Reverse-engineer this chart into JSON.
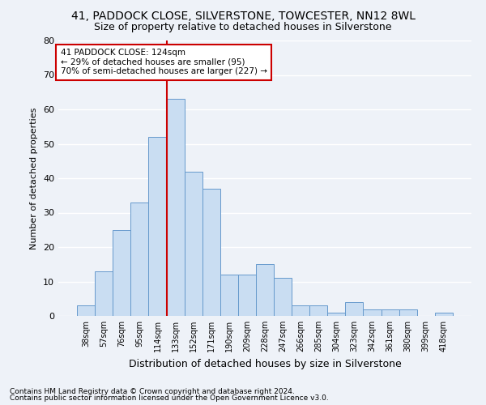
{
  "title1": "41, PADDOCK CLOSE, SILVERSTONE, TOWCESTER, NN12 8WL",
  "title2": "Size of property relative to detached houses in Silverstone",
  "xlabel": "Distribution of detached houses by size in Silverstone",
  "ylabel": "Number of detached properties",
  "categories": [
    "38sqm",
    "57sqm",
    "76sqm",
    "95sqm",
    "114sqm",
    "133sqm",
    "152sqm",
    "171sqm",
    "190sqm",
    "209sqm",
    "228sqm",
    "247sqm",
    "266sqm",
    "285sqm",
    "304sqm",
    "323sqm",
    "342sqm",
    "361sqm",
    "380sqm",
    "399sqm",
    "418sqm"
  ],
  "values": [
    3,
    13,
    25,
    33,
    52,
    63,
    42,
    37,
    12,
    12,
    15,
    11,
    3,
    3,
    1,
    4,
    2,
    2,
    2,
    0,
    1
  ],
  "bar_color": "#c9ddf2",
  "bar_edge_color": "#6699cc",
  "vline_x_index": 4.5,
  "vline_color": "#cc0000",
  "annotation_text": "41 PADDOCK CLOSE: 124sqm\n← 29% of detached houses are smaller (95)\n70% of semi-detached houses are larger (227) →",
  "annotation_box_color": "#ffffff",
  "annotation_box_edge": "#cc0000",
  "ylim": [
    0,
    80
  ],
  "yticks": [
    0,
    10,
    20,
    30,
    40,
    50,
    60,
    70,
    80
  ],
  "footnote1": "Contains HM Land Registry data © Crown copyright and database right 2024.",
  "footnote2": "Contains public sector information licensed under the Open Government Licence v3.0.",
  "background_color": "#eef2f8",
  "grid_color": "#ffffff",
  "title1_fontsize": 10,
  "title2_fontsize": 9,
  "ylabel_fontsize": 8,
  "xlabel_fontsize": 9
}
